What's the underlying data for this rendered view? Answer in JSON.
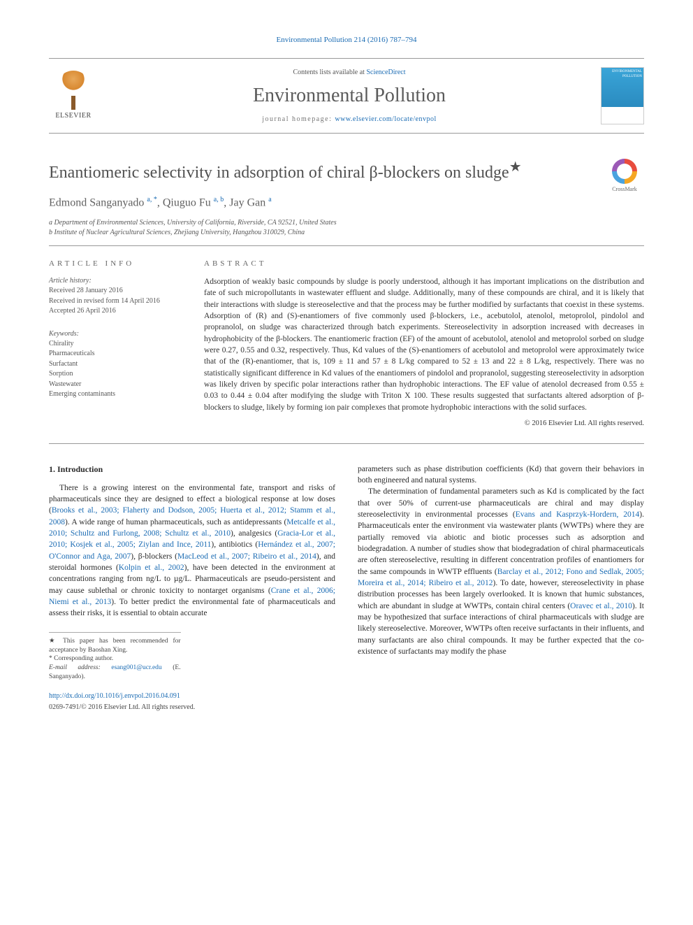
{
  "citation": "Environmental Pollution 214 (2016) 787–794",
  "masthead": {
    "publisher": "ELSEVIER",
    "contents_prefix": "Contents lists available at ",
    "contents_link": "ScienceDirect",
    "journal": "Environmental Pollution",
    "homepage_prefix": "journal homepage: ",
    "homepage_url": "www.elsevier.com/locate/envpol",
    "cover_text": "ENVIRONMENTAL POLLUTION"
  },
  "crossmark_label": "CrossMark",
  "title": "Enantiomeric selectivity in adsorption of chiral β-blockers on sludge",
  "title_star": "★",
  "authors_html": "Edmond Sanganyado <sup>a, *</sup>, Qiuguo Fu <sup>a, b</sup>, Jay Gan <sup>a</sup>",
  "affiliations": [
    "a Department of Environmental Sciences, University of California, Riverside, CA 92521, United States",
    "b Institute of Nuclear Agricultural Sciences, Zhejiang University, Hangzhou 310029, China"
  ],
  "article_info_heading": "ARTICLE INFO",
  "abstract_heading": "ABSTRACT",
  "history": {
    "label": "Article history:",
    "received": "Received 28 January 2016",
    "revised": "Received in revised form 14 April 2016",
    "accepted": "Accepted 26 April 2016"
  },
  "keywords": {
    "label": "Keywords:",
    "items": [
      "Chirality",
      "Pharmaceuticals",
      "Surfactant",
      "Sorption",
      "Wastewater",
      "Emerging contaminants"
    ]
  },
  "abstract": "Adsorption of weakly basic compounds by sludge is poorly understood, although it has important implications on the distribution and fate of such micropollutants in wastewater effluent and sludge. Additionally, many of these compounds are chiral, and it is likely that their interactions with sludge is stereoselective and that the process may be further modified by surfactants that coexist in these systems. Adsorption of (R) and (S)-enantiomers of five commonly used β-blockers, i.e., acebutolol, atenolol, metoprolol, pindolol and propranolol, on sludge was characterized through batch experiments. Stereoselectivity in adsorption increased with decreases in hydrophobicity of the β-blockers. The enantiomeric fraction (EF) of the amount of acebutolol, atenolol and metoprolol sorbed on sludge were 0.27, 0.55 and 0.32, respectively. Thus, Kd values of the (S)-enantiomers of acebutolol and metoprolol were approximately twice that of the (R)-enantiomer, that is, 109 ± 11 and 57 ± 8 L/kg compared to 52 ± 13 and 22 ± 8 L/kg, respectively. There was no statistically significant difference in Kd values of the enantiomers of pindolol and propranolol, suggesting stereoselectivity in adsorption was likely driven by specific polar interactions rather than hydrophobic interactions. The EF value of atenolol decreased from 0.55 ± 0.03 to 0.44 ± 0.04 after modifying the sludge with Triton X 100. These results suggested that surfactants altered adsorption of β-blockers to sludge, likely by forming ion pair complexes that promote hydrophobic interactions with the solid surfaces.",
  "copyright": "© 2016 Elsevier Ltd. All rights reserved.",
  "section1_heading": "1. Introduction",
  "col1_p1_a": "There is a growing interest on the environmental fate, transport and risks of pharmaceuticals since they are designed to effect a biological response at low doses (",
  "col1_p1_ref1": "Brooks et al., 2003; Flaherty and Dodson, 2005; Huerta et al., 2012; Stamm et al., 2008",
  "col1_p1_b": "). A wide range of human pharmaceuticals, such as antidepressants (",
  "col1_p1_ref2": "Metcalfe et al., 2010; Schultz and Furlong, 2008; Schultz et al., 2010",
  "col1_p1_c": "), analgesics (",
  "col1_p1_ref3": "Gracia-Lor et al., 2010; Kosjek et al., 2005; Ziylan and Ince, 2011",
  "col1_p1_d": "), antibiotics (",
  "col1_p1_ref4": "Hernández et al., 2007; O'Connor and Aga, 2007",
  "col1_p1_e": "), β-blockers (",
  "col1_p1_ref5": "MacLeod et al., 2007; Ribeiro et al., 2014",
  "col1_p1_f": "), and steroidal hormones (",
  "col1_p1_ref6": "Kolpin et al., 2002",
  "col1_p1_g": "), have been detected in the environment at concentrations ranging from ng/L to µg/L. Pharmaceuticals are pseudo-persistent and may cause sublethal or chronic toxicity to nontarget organisms (",
  "col1_p1_ref7": "Crane et al., 2006; Niemi et al., 2013",
  "col1_p1_h": "). To better predict the environmental fate of pharmaceuticals and assess their risks, it is essential to obtain accurate",
  "col2_p1": "parameters such as phase distribution coefficients (Kd) that govern their behaviors in both engineered and natural systems.",
  "col2_p2_a": "The determination of fundamental parameters such as Kd is complicated by the fact that over 50% of current-use pharmaceuticals are chiral and may display stereoselectivity in environmental processes (",
  "col2_p2_ref1": "Evans and Kasprzyk-Hordern, 2014",
  "col2_p2_b": "). Pharmaceuticals enter the environment via wastewater plants (WWTPs) where they are partially removed via abiotic and biotic processes such as adsorption and biodegradation. A number of studies show that biodegradation of chiral pharmaceuticals are often stereoselective, resulting in different concentration profiles of enantiomers for the same compounds in WWTP effluents (",
  "col2_p2_ref2": "Barclay et al., 2012; Fono and Sedlak, 2005; Moreira et al., 2014; Ribeiro et al., 2012",
  "col2_p2_c": "). To date, however, stereoselectivity in phase distribution processes has been largely overlooked. It is known that humic substances, which are abundant in sludge at WWTPs, contain chiral centers (",
  "col2_p2_ref3": "Oravec et al., 2010",
  "col2_p2_d": "). It may be hypothesized that surface interactions of chiral pharmaceuticals with sludge are likely stereoselective. Moreover, WWTPs often receive surfactants in their influents, and many surfactants are also chiral compounds. It may be further expected that the co-existence of surfactants may modify the phase",
  "footnotes": {
    "star": "★ This paper has been recommended for acceptance by Baoshan Xing.",
    "corr": "* Corresponding author.",
    "email_label": "E-mail address: ",
    "email": "esang001@ucr.edu",
    "email_suffix": " (E. Sanganyado)."
  },
  "doi": "http://dx.doi.org/10.1016/j.envpol.2016.04.091",
  "issn_line": "0269-7491/© 2016 Elsevier Ltd. All rights reserved.",
  "colors": {
    "link": "#1a6bb3",
    "text": "#2a2a2a",
    "heading_gray": "#505050",
    "rule": "#999999"
  }
}
